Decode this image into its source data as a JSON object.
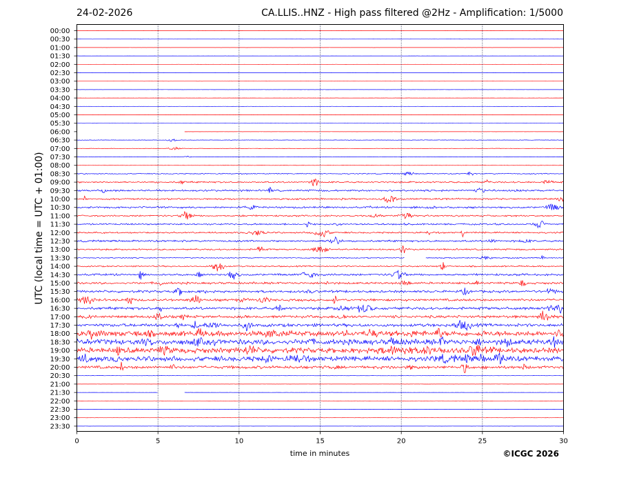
{
  "header": {
    "date": "24-02-2026",
    "title": "CA.LLIS..HNZ - High pass filtered @2Hz - Amplification: 1/5000"
  },
  "footer": {
    "copyright": "©ICGC 2026"
  },
  "chart_data": {
    "type": "line",
    "title": "CA.LLIS..HNZ - High pass filtered @2Hz - Amplification: 1/5000",
    "xlabel": "time in minutes",
    "ylabel": "UTC (local time = UTC + 01:00)",
    "xlim": [
      0,
      30
    ],
    "x_ticks": [
      0,
      5,
      10,
      15,
      20,
      25,
      30
    ],
    "vertical_gridlines": [
      5,
      10,
      15,
      20,
      25
    ],
    "rows": [
      "00:00",
      "00:30",
      "01:00",
      "01:30",
      "02:00",
      "02:30",
      "03:00",
      "03:30",
      "04:00",
      "04:30",
      "05:00",
      "05:30",
      "06:00",
      "06:30",
      "07:00",
      "07:30",
      "08:00",
      "08:30",
      "09:00",
      "09:30",
      "10:00",
      "10:30",
      "11:00",
      "11:30",
      "12:00",
      "12:30",
      "13:00",
      "13:30",
      "14:00",
      "14:30",
      "15:00",
      "15:30",
      "16:00",
      "16:30",
      "17:00",
      "17:30",
      "18:00",
      "18:30",
      "19:00",
      "19:30",
      "20:00",
      "20:30",
      "21:00",
      "21:30",
      "22:00",
      "22:30",
      "23:00",
      "23:30"
    ],
    "row_colors": [
      "#ff0000",
      "#0000ff"
    ],
    "noise_level": [
      0.02,
      0.02,
      0.02,
      0.02,
      0.02,
      0.02,
      0.02,
      0.03,
      0.03,
      0.03,
      0.03,
      0.03,
      0.03,
      0.08,
      0.08,
      0.08,
      0.06,
      0.18,
      0.3,
      0.35,
      0.3,
      0.35,
      0.3,
      0.3,
      0.3,
      0.35,
      0.3,
      0.2,
      0.25,
      0.4,
      0.4,
      0.45,
      0.45,
      0.5,
      0.5,
      0.6,
      1.0,
      1.0,
      1.0,
      0.95,
      0.55,
      0.05,
      0.03,
      0.03,
      0.03,
      0.03,
      0.03,
      0.03
    ],
    "data_gaps": [
      {
        "row": "06:00",
        "from": 0,
        "to": 6.6
      },
      {
        "row": "13:30",
        "from": 20.2,
        "to": 21.5
      },
      {
        "row": "21:30",
        "from": 5.0,
        "to": 6.6
      }
    ]
  }
}
